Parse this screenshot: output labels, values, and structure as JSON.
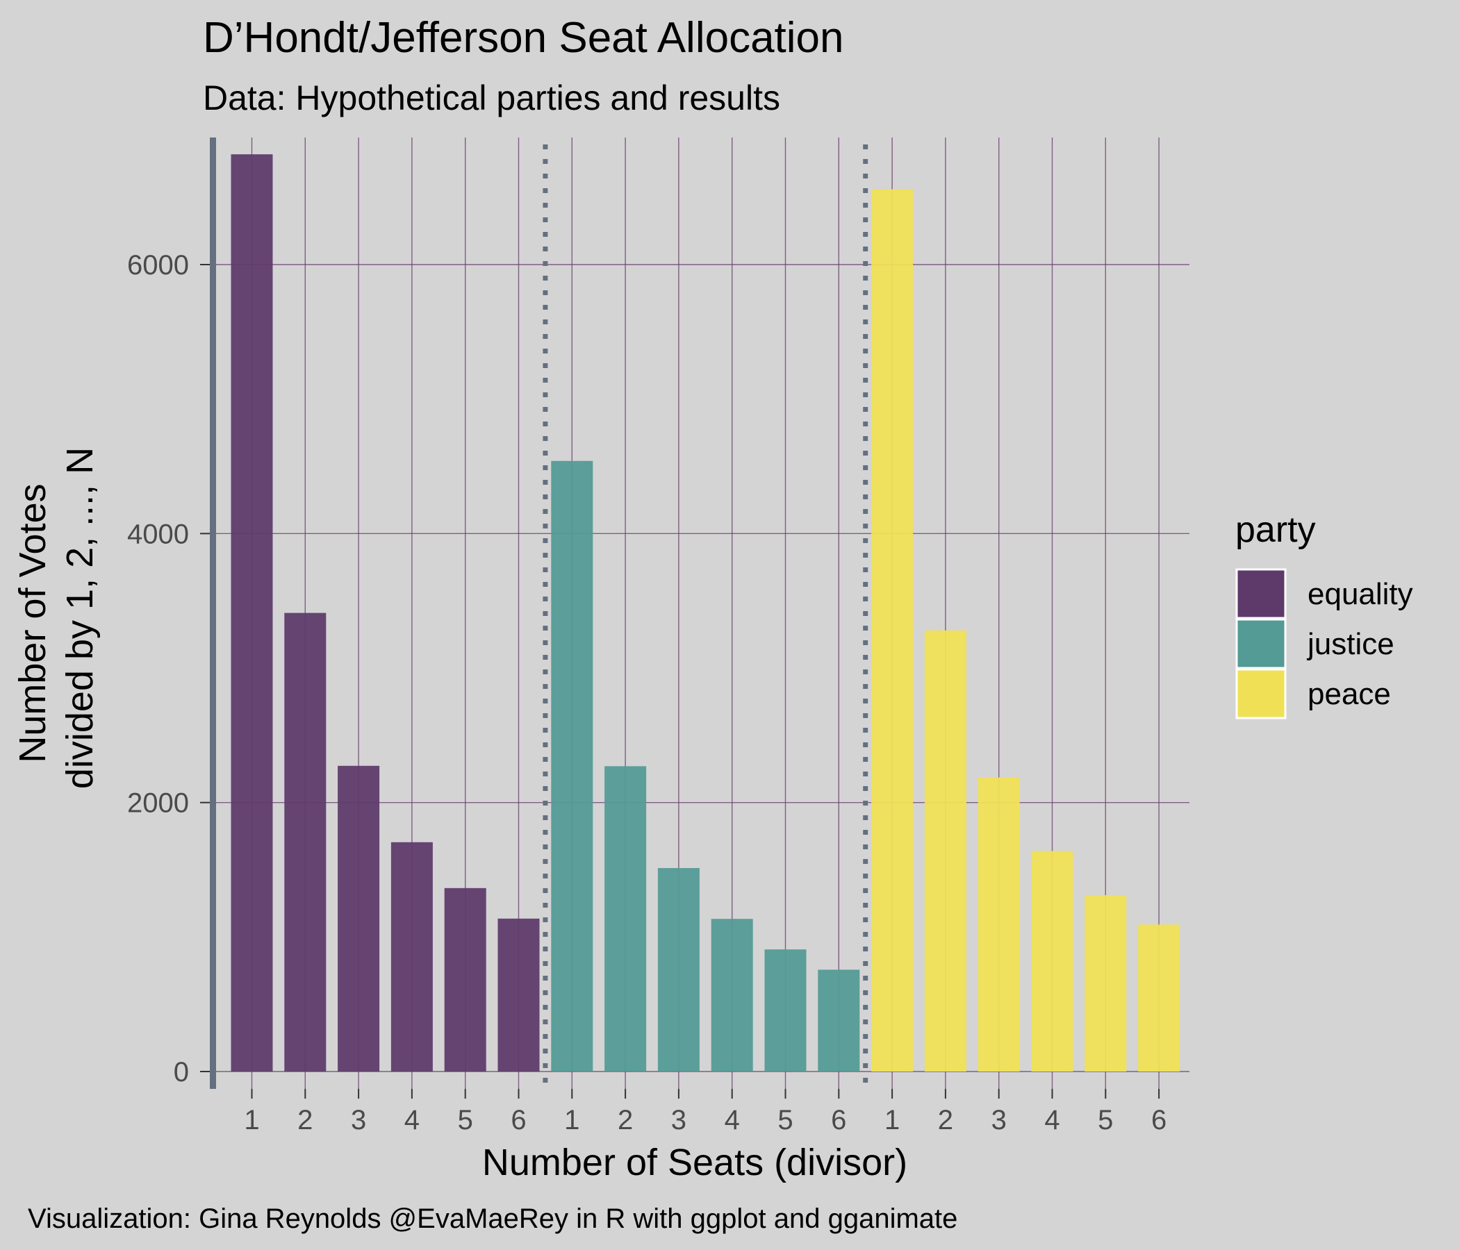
{
  "chart_data": {
    "type": "bar",
    "title": "D’Hondt/Jefferson Seat Allocation",
    "subtitle": "Data: Hypothetical parties and results",
    "xlabel": "Number of Seats (divisor)",
    "ylabel_line1": "Number of Votes",
    "ylabel_line2": "divided by 1, 2, ..., N",
    "caption": "Visualization: Gina Reynolds @EvaMaeRey in R with ggplot and gganimate",
    "ylim": [
      -80,
      6850
    ],
    "y_ticks": [
      0,
      2000,
      4000,
      6000
    ],
    "y_tick_labels": [
      "0",
      "2000",
      "4000",
      "6000"
    ],
    "categories": [
      "1",
      "2",
      "3",
      "4",
      "5",
      "6"
    ],
    "legend": {
      "title": "party",
      "position": "right"
    },
    "series": [
      {
        "name": "equality",
        "color": "#5e3a6b",
        "values": [
          6820,
          3410,
          2273,
          1705,
          1364,
          1137
        ]
      },
      {
        "name": "justice",
        "color": "#549a95",
        "values": [
          4540,
          2270,
          1513,
          1135,
          908,
          757
        ]
      },
      {
        "name": "peace",
        "color": "#f0e055",
        "values": [
          6560,
          3280,
          2187,
          1640,
          1312,
          1093
        ]
      }
    ],
    "grid": true,
    "separator_lines": "dotted"
  }
}
